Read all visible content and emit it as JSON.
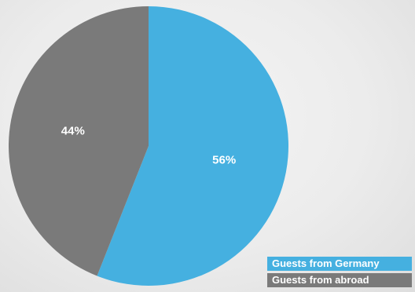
{
  "chart_data": {
    "type": "pie",
    "slices": [
      {
        "name": "Guests from Germany",
        "value": 56,
        "label": "56%",
        "color": "#45b0e0"
      },
      {
        "name": "Guests from abroad",
        "value": 44,
        "label": "44%",
        "color": "#7a7a7a"
      }
    ],
    "start_angle": "12 o'clock",
    "direction": "clockwise",
    "legend": {
      "position": "bottom-right",
      "items": [
        {
          "label": "Guests from Germany",
          "color": "#45b0e0"
        },
        {
          "label": "Guests from abroad",
          "color": "#7a7a7a"
        }
      ]
    }
  }
}
